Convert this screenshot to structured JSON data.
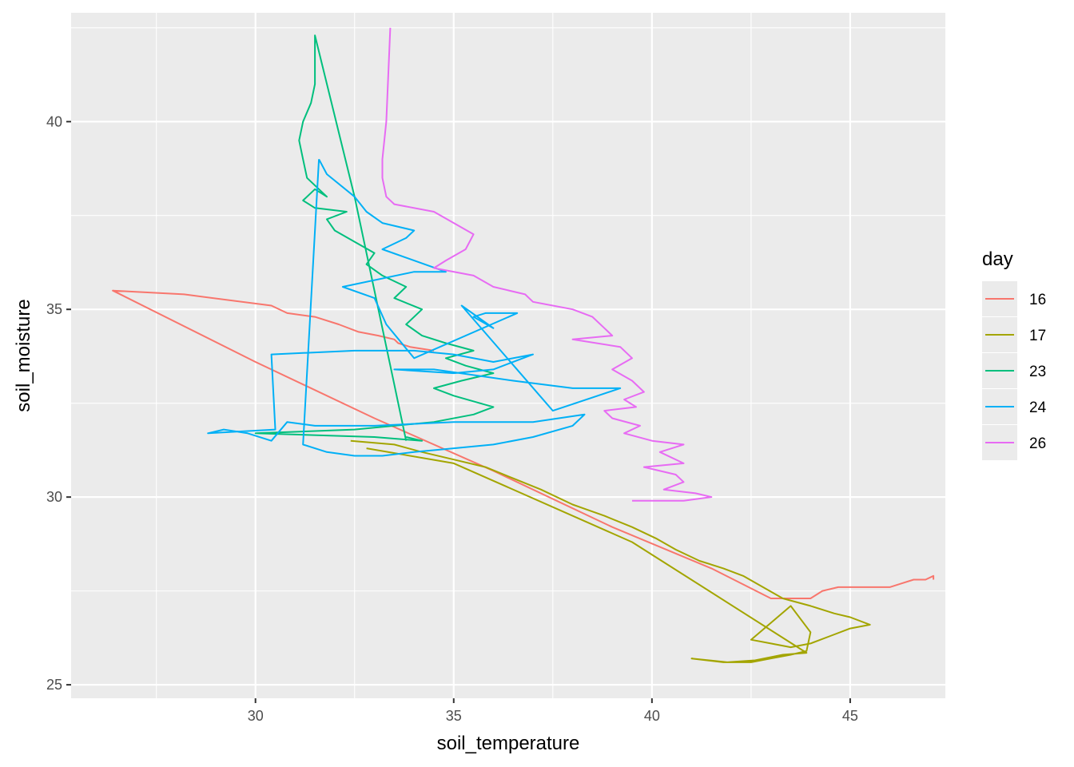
{
  "chart_data": {
    "type": "line",
    "xlabel": "soil_temperature",
    "ylabel": "soil_moisture",
    "xlim": [
      25.35,
      47.4
    ],
    "ylim": [
      24.64,
      42.9
    ],
    "x_ticks": [
      30,
      35,
      40,
      45
    ],
    "y_ticks": [
      25,
      30,
      35,
      40
    ],
    "x_tick_labels": [
      "30",
      "35",
      "40",
      "45"
    ],
    "y_tick_labels": [
      "25",
      "30",
      "35",
      "40"
    ],
    "grid": true,
    "legend": {
      "title": "day",
      "position": "right"
    },
    "background": "#EBEBEB",
    "series": [
      {
        "name": "16",
        "color": "#F8766D",
        "points": [
          [
            34.5,
            33.9
          ],
          [
            33.9,
            34.0
          ],
          [
            33.6,
            34.1
          ],
          [
            33.5,
            34.2
          ],
          [
            33.1,
            34.3
          ],
          [
            32.6,
            34.4
          ],
          [
            32.1,
            34.6
          ],
          [
            31.5,
            34.8
          ],
          [
            30.8,
            34.9
          ],
          [
            30.4,
            35.1
          ],
          [
            28.2,
            35.4
          ],
          [
            26.4,
            35.5
          ],
          [
            30.0,
            33.6
          ],
          [
            33.0,
            32.1
          ],
          [
            36.0,
            30.7
          ],
          [
            39.0,
            29.2
          ],
          [
            41.5,
            28.1
          ],
          [
            43.0,
            27.3
          ],
          [
            43.5,
            27.3
          ],
          [
            44.0,
            27.3
          ],
          [
            44.3,
            27.5
          ],
          [
            44.7,
            27.6
          ],
          [
            45.2,
            27.6
          ],
          [
            46.0,
            27.6
          ],
          [
            46.3,
            27.7
          ],
          [
            46.6,
            27.8
          ],
          [
            46.9,
            27.8
          ],
          [
            47.1,
            27.9
          ],
          [
            47.1,
            27.8
          ]
        ]
      },
      {
        "name": "17",
        "color": "#A3A500",
        "points": [
          [
            32.4,
            31.5
          ],
          [
            33.5,
            31.4
          ],
          [
            34.2,
            31.2
          ],
          [
            35.0,
            31.0
          ],
          [
            35.8,
            30.8
          ],
          [
            36.5,
            30.5
          ],
          [
            37.2,
            30.2
          ],
          [
            38.0,
            29.8
          ],
          [
            38.8,
            29.5
          ],
          [
            39.5,
            29.2
          ],
          [
            40.1,
            28.9
          ],
          [
            40.6,
            28.6
          ],
          [
            41.2,
            28.3
          ],
          [
            41.8,
            28.1
          ],
          [
            42.3,
            27.9
          ],
          [
            42.8,
            27.6
          ],
          [
            43.3,
            27.3
          ],
          [
            44.0,
            27.1
          ],
          [
            44.6,
            26.9
          ],
          [
            45.0,
            26.8
          ],
          [
            45.5,
            26.6
          ],
          [
            45.0,
            26.5
          ],
          [
            44.5,
            26.3
          ],
          [
            44.0,
            26.1
          ],
          [
            43.5,
            26.0
          ],
          [
            43.0,
            26.1
          ],
          [
            42.5,
            26.2
          ],
          [
            43.5,
            27.1
          ],
          [
            44.0,
            26.4
          ],
          [
            43.9,
            25.9
          ],
          [
            43.5,
            25.8
          ],
          [
            43.0,
            25.7
          ],
          [
            42.5,
            25.6
          ],
          [
            41.8,
            25.6
          ],
          [
            41.0,
            25.7
          ],
          [
            41.9,
            25.6
          ],
          [
            42.6,
            25.65
          ],
          [
            43.3,
            25.8
          ],
          [
            43.9,
            25.85
          ],
          [
            39.5,
            28.8
          ],
          [
            35.0,
            30.9
          ],
          [
            32.8,
            31.3
          ]
        ]
      },
      {
        "name": "23",
        "color": "#00BF7D",
        "points": [
          [
            33.8,
            31.6
          ],
          [
            34.2,
            31.5
          ],
          [
            33.0,
            31.6
          ],
          [
            30.0,
            31.7
          ],
          [
            32.5,
            31.8
          ],
          [
            34.5,
            32.0
          ],
          [
            35.5,
            32.2
          ],
          [
            36.0,
            32.4
          ],
          [
            35.0,
            32.7
          ],
          [
            34.5,
            32.9
          ],
          [
            35.2,
            33.1
          ],
          [
            36.0,
            33.3
          ],
          [
            35.3,
            33.5
          ],
          [
            34.8,
            33.7
          ],
          [
            35.5,
            33.9
          ],
          [
            34.8,
            34.1
          ],
          [
            34.2,
            34.3
          ],
          [
            33.8,
            34.6
          ],
          [
            34.2,
            35.0
          ],
          [
            33.5,
            35.3
          ],
          [
            33.8,
            35.6
          ],
          [
            33.2,
            35.9
          ],
          [
            32.8,
            36.2
          ],
          [
            33.0,
            36.5
          ],
          [
            32.5,
            36.8
          ],
          [
            32.0,
            37.1
          ],
          [
            31.8,
            37.4
          ],
          [
            32.3,
            37.6
          ],
          [
            31.5,
            37.7
          ],
          [
            31.2,
            37.9
          ],
          [
            31.5,
            38.2
          ],
          [
            31.8,
            38.0
          ],
          [
            31.3,
            38.5
          ],
          [
            31.2,
            39.0
          ],
          [
            31.1,
            39.5
          ],
          [
            31.2,
            40.0
          ],
          [
            31.4,
            40.5
          ],
          [
            31.5,
            41.0
          ],
          [
            31.5,
            42.3
          ],
          [
            32.5,
            38.0
          ],
          [
            33.5,
            33.0
          ],
          [
            33.8,
            31.5
          ]
        ]
      },
      {
        "name": "24",
        "color": "#00B0F6",
        "points": [
          [
            31.6,
            39.0
          ],
          [
            31.2,
            31.4
          ],
          [
            31.8,
            31.2
          ],
          [
            32.5,
            31.1
          ],
          [
            33.2,
            31.1
          ],
          [
            34.0,
            31.2
          ],
          [
            35.0,
            31.3
          ],
          [
            36.0,
            31.4
          ],
          [
            37.0,
            31.6
          ],
          [
            38.0,
            31.9
          ],
          [
            38.3,
            32.2
          ],
          [
            37.0,
            32.0
          ],
          [
            35.0,
            32.0
          ],
          [
            33.0,
            31.9
          ],
          [
            31.5,
            31.9
          ],
          [
            30.8,
            32.0
          ],
          [
            30.4,
            31.5
          ],
          [
            29.8,
            31.7
          ],
          [
            29.2,
            31.8
          ],
          [
            28.8,
            31.7
          ],
          [
            30.5,
            31.8
          ],
          [
            30.4,
            33.8
          ],
          [
            32.5,
            33.9
          ],
          [
            34.0,
            33.9
          ],
          [
            35.0,
            33.8
          ],
          [
            36.0,
            33.6
          ],
          [
            37.0,
            33.8
          ],
          [
            36.0,
            33.4
          ],
          [
            35.0,
            33.3
          ],
          [
            33.5,
            33.4
          ],
          [
            34.5,
            33.4
          ],
          [
            36.5,
            33.1
          ],
          [
            38.0,
            32.9
          ],
          [
            39.2,
            32.9
          ],
          [
            37.5,
            32.3
          ],
          [
            35.2,
            35.1
          ],
          [
            36.0,
            34.5
          ],
          [
            35.5,
            34.8
          ],
          [
            35.8,
            34.9
          ],
          [
            36.6,
            34.9
          ],
          [
            34.0,
            33.7
          ],
          [
            33.3,
            34.6
          ],
          [
            33.0,
            35.3
          ],
          [
            32.2,
            35.6
          ],
          [
            34.0,
            36.0
          ],
          [
            34.8,
            36.0
          ],
          [
            33.2,
            36.6
          ],
          [
            33.8,
            36.9
          ],
          [
            34.0,
            37.1
          ],
          [
            33.2,
            37.3
          ],
          [
            32.8,
            37.6
          ],
          [
            32.5,
            38.0
          ],
          [
            31.8,
            38.6
          ],
          [
            31.6,
            39.0
          ]
        ]
      },
      {
        "name": "26",
        "color": "#E76BF3",
        "points": [
          [
            33.4,
            42.5
          ],
          [
            33.3,
            40.0
          ],
          [
            33.2,
            39.0
          ],
          [
            33.2,
            38.5
          ],
          [
            33.3,
            38.0
          ],
          [
            33.5,
            37.8
          ],
          [
            34.5,
            37.6
          ],
          [
            35.0,
            37.3
          ],
          [
            35.5,
            37.0
          ],
          [
            35.3,
            36.6
          ],
          [
            34.8,
            36.3
          ],
          [
            34.5,
            36.1
          ],
          [
            35.5,
            35.9
          ],
          [
            36.0,
            35.6
          ],
          [
            36.8,
            35.4
          ],
          [
            37.0,
            35.2
          ],
          [
            38.0,
            35.0
          ],
          [
            38.5,
            34.8
          ],
          [
            38.8,
            34.5
          ],
          [
            39.0,
            34.3
          ],
          [
            38.0,
            34.2
          ],
          [
            39.2,
            34.0
          ],
          [
            39.5,
            33.7
          ],
          [
            39.0,
            33.4
          ],
          [
            39.5,
            33.1
          ],
          [
            39.8,
            32.8
          ],
          [
            39.3,
            32.6
          ],
          [
            39.6,
            32.4
          ],
          [
            38.8,
            32.3
          ],
          [
            39.0,
            32.1
          ],
          [
            39.7,
            31.9
          ],
          [
            39.3,
            31.7
          ],
          [
            40.0,
            31.5
          ],
          [
            40.8,
            31.4
          ],
          [
            40.2,
            31.2
          ],
          [
            40.8,
            30.9
          ],
          [
            39.8,
            30.8
          ],
          [
            40.6,
            30.6
          ],
          [
            40.8,
            30.4
          ],
          [
            40.3,
            30.2
          ],
          [
            41.1,
            30.1
          ],
          [
            41.5,
            30.0
          ],
          [
            40.8,
            29.9
          ],
          [
            39.5,
            29.9
          ]
        ]
      }
    ]
  }
}
